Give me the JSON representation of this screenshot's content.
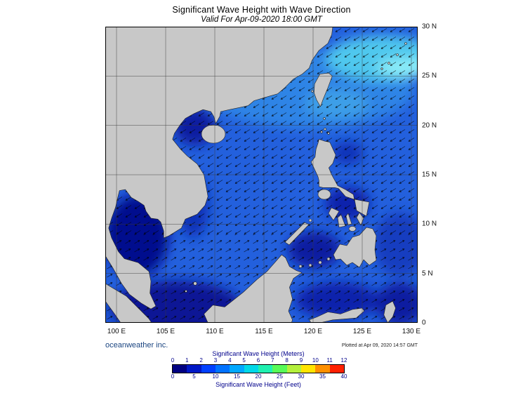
{
  "header": {
    "title": "Significant Wave Height with Wave Direction",
    "subtitle": "Valid For Apr-09-2020 18:00 GMT"
  },
  "map": {
    "lat_labels": [
      "30 N",
      "25 N",
      "20 N",
      "15 N",
      "10 N",
      "5 N",
      "0"
    ],
    "lon_labels": [
      "100 E",
      "105 E",
      "110 E",
      "115 E",
      "120 E",
      "125 E",
      "130 E"
    ]
  },
  "footer": {
    "credit": "oceanweather inc.",
    "plotted": "Plotted at Apr 09, 2020 14:57 GMT"
  },
  "legend": {
    "meters_title": "Significant Wave Height (Meters)",
    "feet_title": "Significant Wave Height (Feet)",
    "meters_ticks": [
      "0",
      "1",
      "2",
      "3",
      "4",
      "5",
      "6",
      "7",
      "8",
      "9",
      "10",
      "11",
      "12"
    ],
    "feet_ticks": [
      "0",
      "5",
      "10",
      "15",
      "20",
      "25",
      "30",
      "35",
      "40"
    ],
    "colors": [
      "#000082",
      "#0018c6",
      "#0040ff",
      "#0072ff",
      "#00a8ff",
      "#00d8e8",
      "#20f0b0",
      "#58fa58",
      "#b4f03c",
      "#ffe400",
      "#ff9000",
      "#ff2000"
    ]
  }
}
